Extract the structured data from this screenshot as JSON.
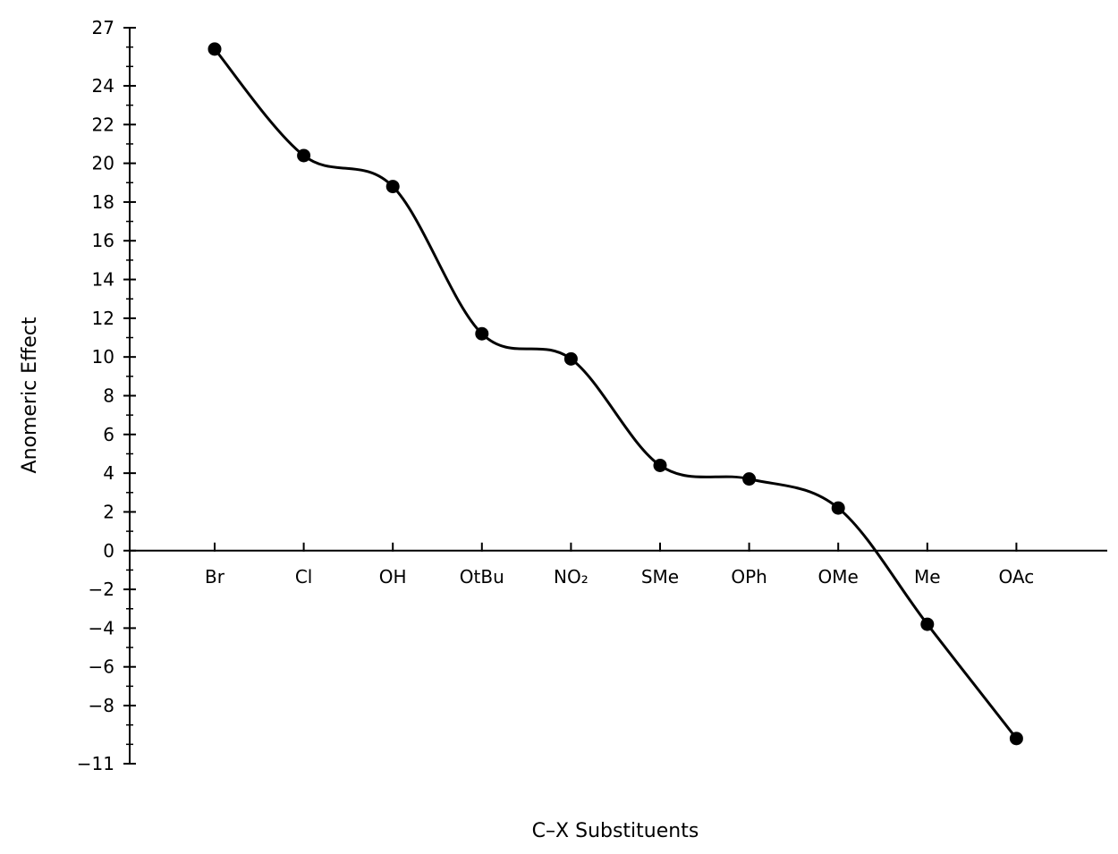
{
  "chart_data": {
    "type": "line",
    "smooth": true,
    "xlabel": "C–X Substituents",
    "ylabel": "Anomeric Effect",
    "categories": [
      "Br",
      "Cl",
      "OH",
      "OtBu",
      "NO₂",
      "SMe",
      "OPh",
      "OMe",
      "Me",
      "OAc"
    ],
    "series": [
      {
        "values": [
          25.9,
          20.4,
          18.8,
          11.2,
          9.9,
          4.4,
          3.7,
          2.2,
          -3.8,
          -9.7
        ]
      }
    ],
    "ylim": [
      -11,
      27
    ],
    "y_tick_labels": [
      27,
      24,
      22,
      20,
      18,
      16,
      14,
      12,
      10,
      8,
      6,
      4,
      2,
      0,
      -2,
      -4,
      -6,
      -8,
      -11
    ],
    "y_minor_step": 1,
    "grid": false,
    "legend": "none",
    "marker": "filled-circle",
    "line_color": "#000000"
  }
}
